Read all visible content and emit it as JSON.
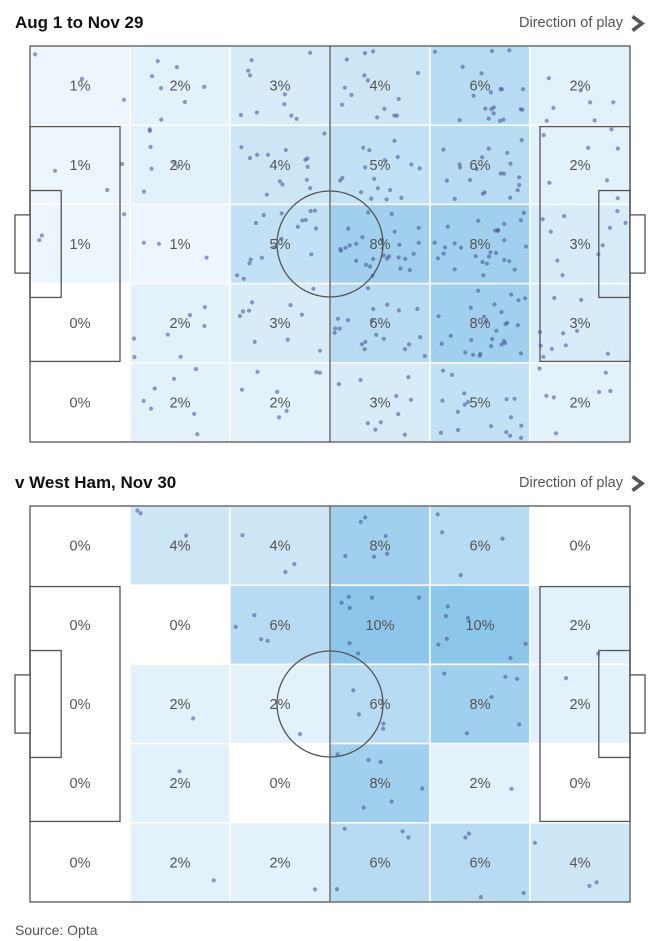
{
  "page": {
    "source_text": "Source: Opta"
  },
  "colors": {
    "cell_base_rgb": [
      80,
      168,
      224
    ],
    "dot": "#3f4e8f",
    "pitch_line": "#555555",
    "label": "#545454",
    "title": "#111111",
    "muted": "#555555"
  },
  "chart_data": [
    {
      "type": "heatmap",
      "title": "Aug 1 to Nov 29",
      "direction_label": "Direction of play",
      "direction": "left-to-right",
      "grid_rows": 5,
      "grid_cols": 6,
      "unit": "%",
      "zone_percentages": [
        [
          1,
          2,
          3,
          4,
          6,
          2
        ],
        [
          1,
          2,
          4,
          5,
          6,
          2
        ],
        [
          1,
          1,
          5,
          8,
          8,
          3
        ],
        [
          0,
          2,
          3,
          6,
          8,
          3
        ],
        [
          0,
          2,
          2,
          3,
          5,
          2
        ]
      ],
      "overlay_type": "scatter",
      "overlay_approx_points": 340
    },
    {
      "type": "heatmap",
      "title": "v West Ham, Nov 30",
      "direction_label": "Direction of play",
      "direction": "left-to-right",
      "grid_rows": 5,
      "grid_cols": 6,
      "unit": "%",
      "zone_percentages": [
        [
          0,
          4,
          4,
          8,
          6,
          0
        ],
        [
          0,
          0,
          6,
          10,
          10,
          2
        ],
        [
          0,
          2,
          2,
          6,
          8,
          2
        ],
        [
          0,
          2,
          0,
          8,
          2,
          0
        ],
        [
          0,
          2,
          2,
          6,
          6,
          4
        ]
      ],
      "overlay_type": "scatter",
      "overlay_approx_points": 70
    }
  ]
}
